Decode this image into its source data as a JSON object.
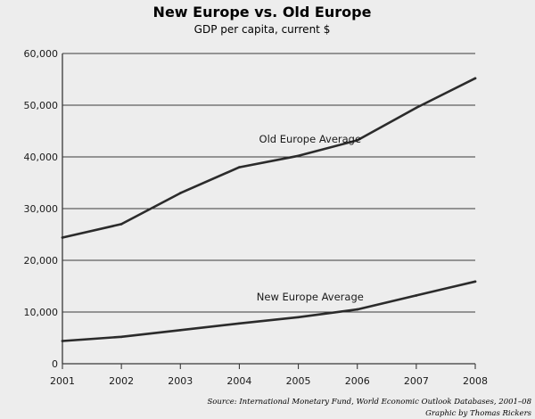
{
  "chart_data": {
    "type": "line",
    "title": "New Europe vs. Old Europe",
    "subtitle": "GDP per capita, current $",
    "xlabel": "",
    "ylabel": "",
    "x": [
      2001,
      2002,
      2003,
      2004,
      2005,
      2006,
      2007,
      2008
    ],
    "x_tick_labels": [
      "2001",
      "2002",
      "2003",
      "2004",
      "2005",
      "2006",
      "2007",
      "2008"
    ],
    "ylim": [
      0,
      60000
    ],
    "y_ticks": [
      0,
      10000,
      20000,
      30000,
      40000,
      50000,
      60000
    ],
    "y_tick_labels": [
      "0",
      "10,000",
      "20,000",
      "30,000",
      "40,000",
      "50,000",
      "60,000"
    ],
    "grid": "horizontal",
    "series": [
      {
        "name": "Old Europe Average",
        "values": [
          24400,
          27000,
          33000,
          38000,
          40200,
          43200,
          49500,
          55200
        ]
      },
      {
        "name": "New Europe Average",
        "values": [
          4400,
          5200,
          6500,
          7800,
          9000,
          10500,
          13200,
          15900
        ]
      }
    ],
    "source_lines": [
      "Source: International Monetary Fund, World Economic Outlook Databases, 2001–08",
      "Graphic by Thomas Rickers"
    ]
  },
  "colors": {
    "background": "#ededed",
    "line": "#2b2b2b",
    "grid": "#3a3a3a",
    "text": "#1a1a1a"
  }
}
